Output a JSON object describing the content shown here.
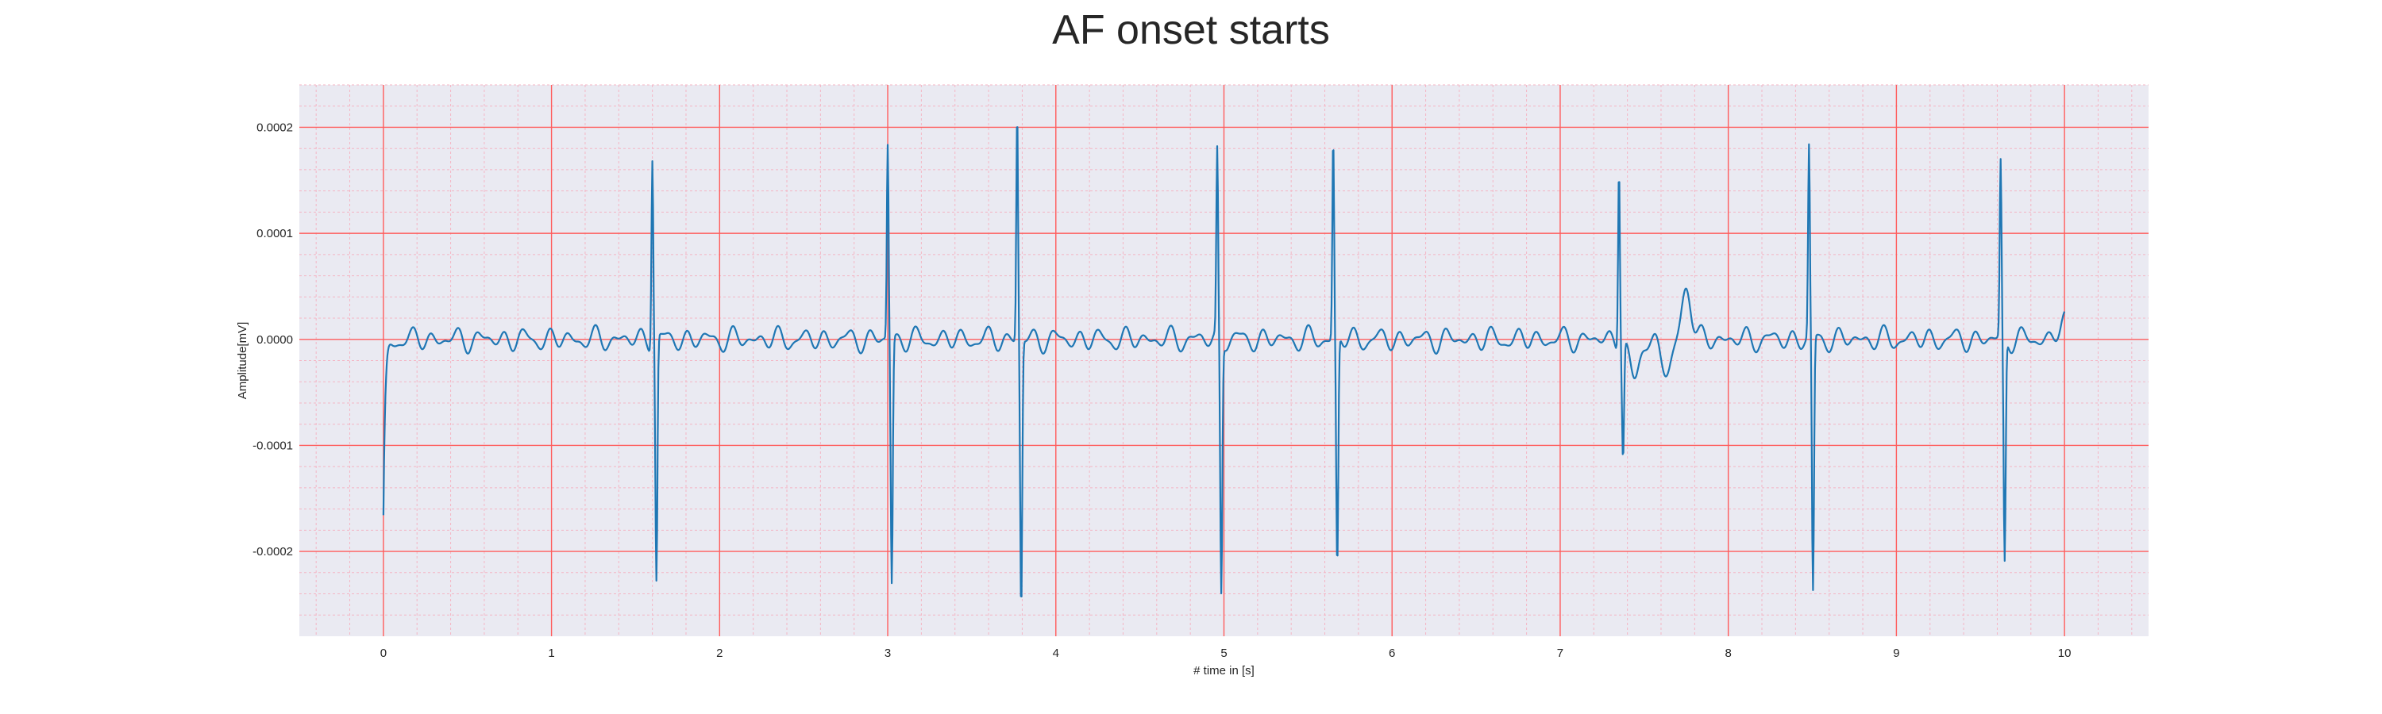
{
  "chart_data": {
    "type": "line",
    "title": "AF onset starts",
    "xlabel": "# time in [s]",
    "ylabel": "Amplitude[mV]",
    "xlim": [
      -0.5,
      10.5
    ],
    "ylim": [
      -0.00028,
      0.00024
    ],
    "x_ticks": [
      0,
      1,
      2,
      3,
      4,
      5,
      6,
      7,
      8,
      9,
      10
    ],
    "x_tick_labels": [
      "0",
      "1",
      "2",
      "3",
      "4",
      "5",
      "6",
      "7",
      "8",
      "9",
      "10"
    ],
    "y_ticks": [
      0.0002,
      0.0001,
      0.0,
      -0.0001,
      -0.0002
    ],
    "y_tick_labels": [
      "0.0002",
      "0.0001",
      "0.0000",
      "-0.0001",
      "-0.0002"
    ],
    "grid": true,
    "minor_grid": true,
    "colors": {
      "background": "#eaeaf2",
      "major_grid": "#ff5c5c",
      "minor_grid": "#f4b5c4",
      "line": "#1f77b4"
    },
    "series": [
      {
        "peaks": [
          {
            "t": 1.6,
            "r": 0.000178,
            "s": -0.000228
          },
          {
            "t": 3.0,
            "r": 0.000184,
            "s": -0.00023
          },
          {
            "t": 3.77,
            "r": 0.000216,
            "s": -0.000256
          },
          {
            "t": 4.96,
            "r": 0.000174,
            "s": -0.000238
          },
          {
            "t": 5.65,
            "r": 0.000189,
            "s": -0.00022
          },
          {
            "t": 7.35,
            "r": 0.000173,
            "s": -0.000108
          },
          {
            "t": 8.48,
            "r": 0.000179,
            "s": -0.000242
          },
          {
            "t": 9.62,
            "r": 0.000165,
            "s": -0.000212
          }
        ],
        "start": {
          "t": 0.0,
          "y": -0.000175
        },
        "end": {
          "t": 10.0,
          "y": 1.7e-05
        },
        "t_wave": {
          "t": 7.75,
          "y": 5.2e-05
        },
        "baseline_amplitude": 1.2e-05,
        "sample_step": 0.004
      }
    ]
  }
}
